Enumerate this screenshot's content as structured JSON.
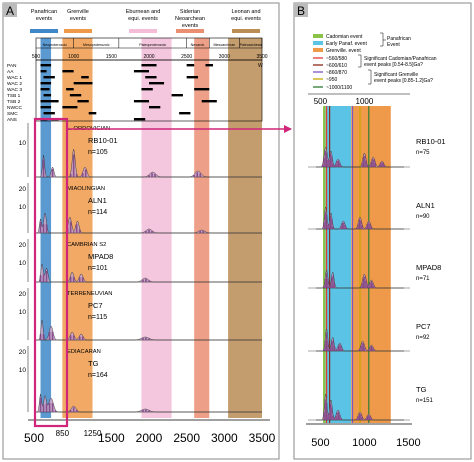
{
  "panel_a": {
    "letter": "A",
    "events": [
      {
        "label1": "Panafrican",
        "label2": "events",
        "color": "#3e87c9"
      },
      {
        "label1": "Grenville",
        "label2": "events",
        "color": "#ef9a4a"
      },
      {
        "label1": "Eburnean and",
        "label2": "equi. events",
        "color": "#f3bdd8"
      },
      {
        "label1": "Siderian",
        "label2": "Neoarchean",
        "label3": "events",
        "color": "#ea8f72"
      },
      {
        "label1": "Leonan and",
        "label2": "equi. events",
        "color": "#ba8c56"
      }
    ],
    "top_axis_ticks": [
      "500",
      "1000",
      "1500",
      "2000",
      "2500",
      "3000",
      "3500"
    ],
    "periods": [
      "Neoproterozoic",
      "Mesoproterozoic",
      "Paleoproterozoic",
      "Neoarch.",
      "Mesoarchean",
      "Paleoarchean"
    ],
    "ref_labels": [
      "PAN",
      "AA",
      "WAC 1",
      "WAC 2",
      "WAC 3",
      "TSB 1",
      "TSB 2",
      "NWCC",
      "SMC",
      "ANS"
    ],
    "side_letter": "W",
    "samples": [
      {
        "age": "L. ORDOVICIAN",
        "name": "RB10-01",
        "n": "n=105"
      },
      {
        "age": "MIAOLINGIAN",
        "name": "ALN1",
        "n": "n=114"
      },
      {
        "age": "CAMBRIAN S2",
        "name": "MPAD8",
        "n": "n=101"
      },
      {
        "age": "TERRENEUVIAN",
        "name": "PC7",
        "n": "n=115"
      },
      {
        "age": "EDIACARAN",
        "name": "TG",
        "n": "n=164"
      }
    ],
    "y_ticks": [
      [
        "10"
      ],
      [
        "20",
        "10"
      ],
      [
        "20",
        "10"
      ],
      [
        "20",
        "10"
      ],
      [
        "20",
        "10"
      ]
    ],
    "x_ticks": [
      "500",
      "850",
      "1250",
      "1500",
      "2000",
      "2500",
      "3000",
      "3500"
    ]
  },
  "panel_b": {
    "letter": "B",
    "legend": [
      {
        "label": "Cadomian event",
        "color": "#8bc34a"
      },
      {
        "label": "Early Panaf. event",
        "color": "#5bc4e6"
      },
      {
        "label": "Grenville. event",
        "color": "#ef9a4a"
      },
      {
        "label": "~560/580",
        "color": "#e53935"
      },
      {
        "label": "~600/610",
        "color": "#8b2a1c"
      },
      {
        "label": "~860/870",
        "color": "#7e57c2"
      },
      {
        "label": "~950",
        "color": "#c6a700"
      },
      {
        "label": "~1000/1100",
        "color": "#2e7d32"
      }
    ],
    "panafrican_brace": [
      "Panafrican",
      "Event"
    ],
    "significant_1": [
      "Significant Cadomian/Panafrican",
      "event peaks [0.54-8.5]Ga?"
    ],
    "significant_2": [
      "Significant Grenville",
      "event peaks [0.85-1.2]Ga?"
    ],
    "top_ticks": [
      "500",
      "1000"
    ],
    "samples": [
      {
        "name": "RB10-01",
        "n": "n=75"
      },
      {
        "name": "ALN1",
        "n": "n=90"
      },
      {
        "name": "MPAD8",
        "n": "n=71"
      },
      {
        "name": "PC7",
        "n": "n=92"
      },
      {
        "name": "TG",
        "n": "n=151"
      }
    ],
    "x_ticks": [
      "500",
      "1000",
      "1500"
    ]
  }
}
